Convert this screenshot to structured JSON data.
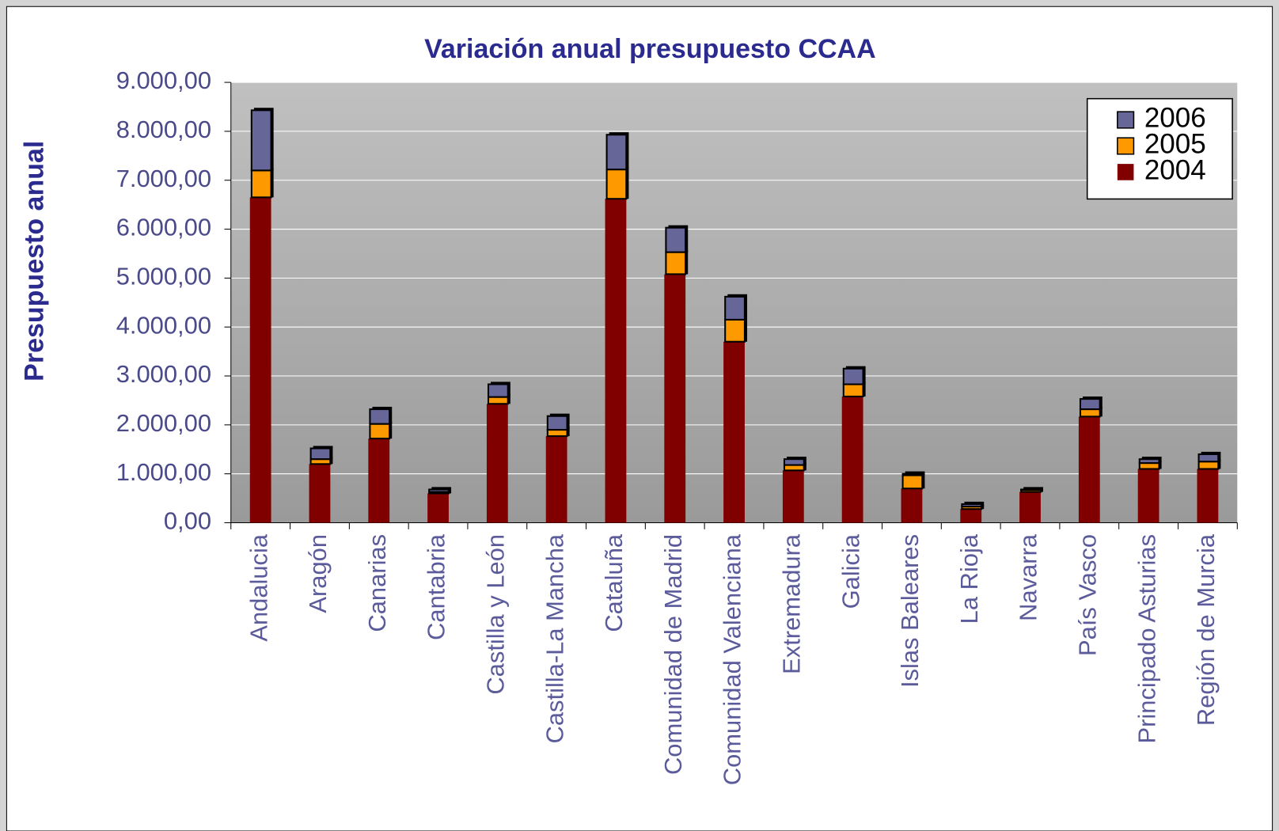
{
  "chart_data": {
    "type": "bar",
    "title": "Variación anual presupuesto CCAA",
    "y_label": "Presupuesto anual",
    "categories": [
      "Andalucia",
      "Aragón",
      "Canarias",
      "Cantabria",
      "Castilla y León",
      "Castilla-La Mancha",
      "Cataluña",
      "Comunidad de Madrid",
      "Comunidad Valenciana",
      "Extremadura",
      "Galicia",
      "Islas Baleares",
      "La Rioja",
      "Navarra",
      "País Vasco",
      "Principado Asturias",
      "Región de Murcia"
    ],
    "series": [
      {
        "name": "2004",
        "color": "#800000",
        "values": [
          6650,
          1200,
          1720,
          600,
          2430,
          1770,
          6620,
          5080,
          3700,
          1070,
          2580,
          700,
          280,
          630,
          2170,
          1100,
          1100
        ]
      },
      {
        "name": "2005",
        "color": "#ff9900",
        "values": [
          7200,
          1300,
          2020,
          630,
          2570,
          1900,
          7220,
          5530,
          4150,
          1180,
          2830,
          970,
          330,
          670,
          2320,
          1220,
          1250
        ]
      },
      {
        "name": "2006",
        "color": "#666699",
        "values": [
          8430,
          1520,
          2320,
          680,
          2830,
          2180,
          7930,
          6030,
          4620,
          1300,
          3150,
          1000,
          380,
          680,
          2530,
          1300,
          1400
        ]
      }
    ],
    "ylim": [
      0,
      9000
    ],
    "yticks": [
      {
        "value": 0,
        "label": "0,00"
      },
      {
        "value": 1000,
        "label": "1.000,00"
      },
      {
        "value": 2000,
        "label": "2.000,00"
      },
      {
        "value": 3000,
        "label": "3.000,00"
      },
      {
        "value": 4000,
        "label": "4.000,00"
      },
      {
        "value": 5000,
        "label": "5.000,00"
      },
      {
        "value": 6000,
        "label": "6.000,00"
      },
      {
        "value": 7000,
        "label": "7.000,00"
      },
      {
        "value": 8000,
        "label": "8.000,00"
      },
      {
        "value": 9000,
        "label": "9.000,00"
      }
    ],
    "grid": true,
    "legend": "top-right"
  }
}
